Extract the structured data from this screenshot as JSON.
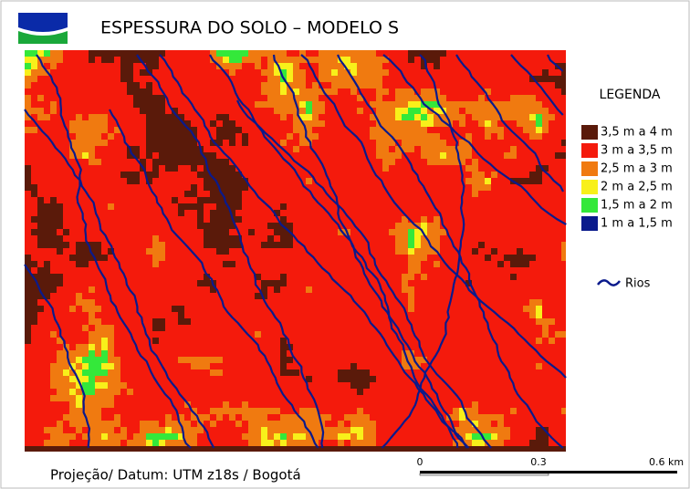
{
  "title": "ESPESSURA DO SOLO – MODELO S",
  "legend": {
    "title": "LEGENDA",
    "items": [
      {
        "label": "3,5 m a 4 m",
        "color": "#5a1a0a"
      },
      {
        "label": "3 m a 3,5 m",
        "color": "#f41a0c"
      },
      {
        "label": "2,5 m a 3 m",
        "color": "#f07a10"
      },
      {
        "label": "2 m a 2,5 m",
        "color": "#f8f01a"
      },
      {
        "label": "1,5 m a 2 m",
        "color": "#34e83a"
      },
      {
        "label": "1 m a 1,5 m",
        "color": "#0a1a8c"
      }
    ],
    "rivers": "Rios"
  },
  "footer": "Projeção/ Datum: UTM z18s / Bogotá",
  "scale_bar": {
    "labels": [
      "0",
      "0.3",
      "0.6 km"
    ]
  }
}
